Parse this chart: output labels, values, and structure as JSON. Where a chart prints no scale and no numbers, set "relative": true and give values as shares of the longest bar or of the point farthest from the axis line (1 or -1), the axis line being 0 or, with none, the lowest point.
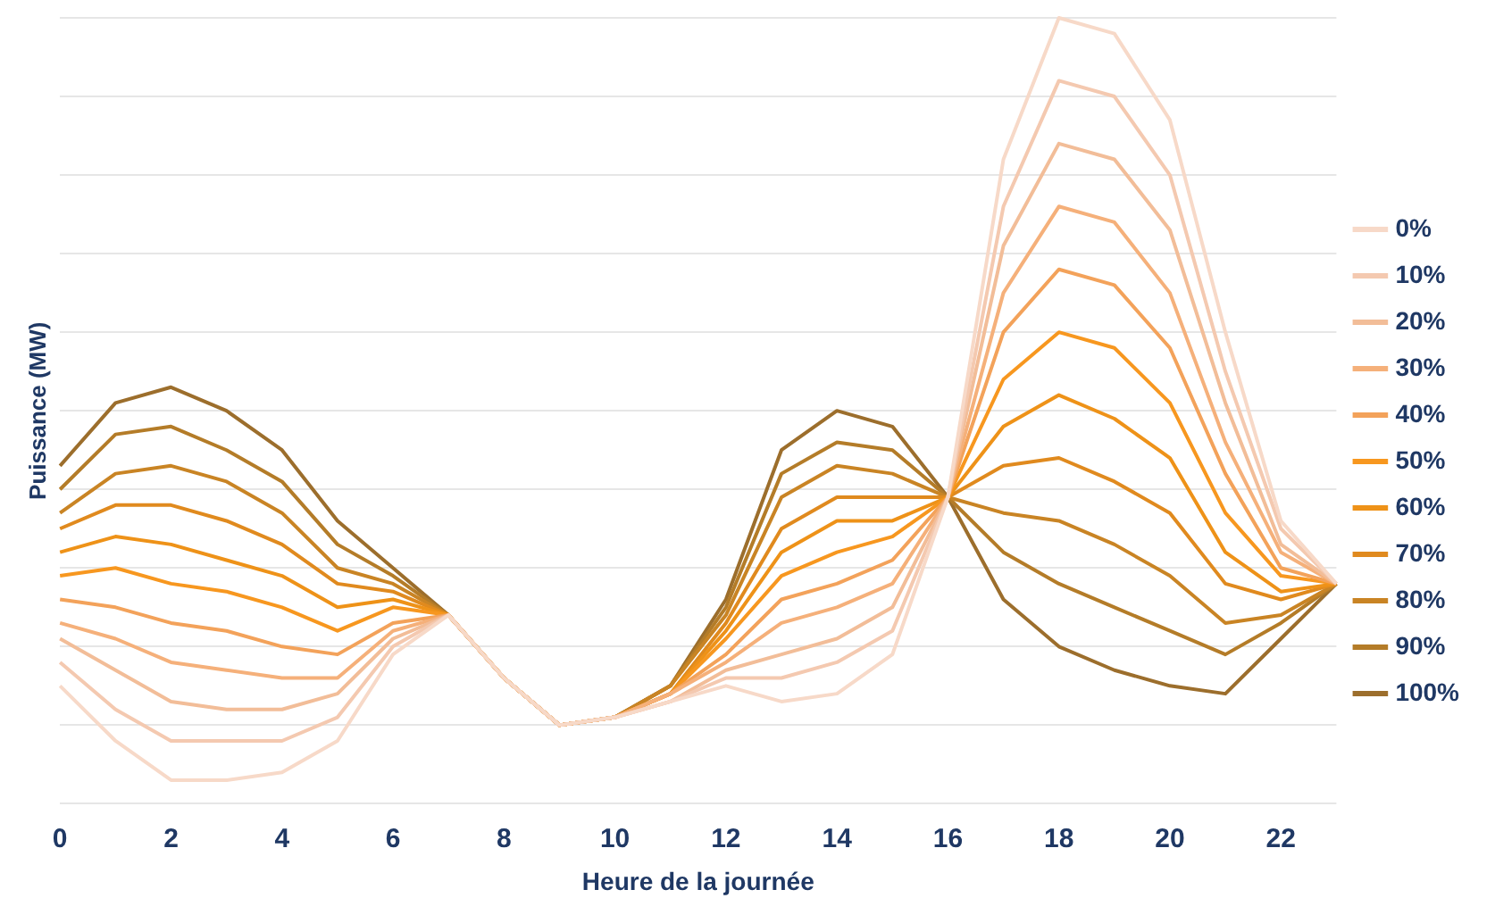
{
  "chart_data": {
    "type": "line",
    "relative": true,
    "xlabel": "Heure de la journée",
    "ylabel": "Puissance (MW)",
    "grid": "y",
    "legend": "right",
    "marker": "none",
    "line_style": "solid",
    "categories": [
      "0",
      null,
      "2",
      null,
      "4",
      null,
      "6",
      null,
      "8",
      null,
      "10",
      null,
      "12",
      null,
      "14",
      null,
      "16",
      null,
      "18",
      null,
      "20",
      null,
      "22",
      null
    ],
    "series": [
      {
        "name": "0%",
        "color": "#f7d9c8",
        "values": [
          0.15,
          0.08,
          0.03,
          0.03,
          0.04,
          0.08,
          0.19,
          0.24,
          0.16,
          0.1,
          0.11,
          0.13,
          0.15,
          0.13,
          0.14,
          0.19,
          0.39,
          0.82,
          1.0,
          0.98,
          0.87,
          0.6,
          0.36,
          0.28
        ]
      },
      {
        "name": "10%",
        "color": "#f4c9b0",
        "values": [
          0.18,
          0.12,
          0.08,
          0.08,
          0.08,
          0.11,
          0.2,
          0.24,
          0.16,
          0.1,
          0.11,
          0.13,
          0.16,
          0.16,
          0.18,
          0.22,
          0.39,
          0.76,
          0.92,
          0.9,
          0.8,
          0.55,
          0.35,
          0.28
        ]
      },
      {
        "name": "20%",
        "color": "#f2bd98",
        "values": [
          0.21,
          0.17,
          0.13,
          0.12,
          0.12,
          0.14,
          0.21,
          0.24,
          0.16,
          0.1,
          0.11,
          0.13,
          0.17,
          0.19,
          0.21,
          0.25,
          0.39,
          0.71,
          0.84,
          0.82,
          0.73,
          0.51,
          0.33,
          0.28
        ]
      },
      {
        "name": "30%",
        "color": "#f5b07a",
        "values": [
          0.23,
          0.21,
          0.18,
          0.17,
          0.16,
          0.16,
          0.22,
          0.24,
          0.16,
          0.1,
          0.11,
          0.14,
          0.18,
          0.23,
          0.25,
          0.28,
          0.39,
          0.65,
          0.76,
          0.74,
          0.65,
          0.46,
          0.32,
          0.28
        ]
      },
      {
        "name": "40%",
        "color": "#f3a25a",
        "values": [
          0.26,
          0.25,
          0.23,
          0.22,
          0.2,
          0.19,
          0.23,
          0.24,
          0.16,
          0.1,
          0.11,
          0.14,
          0.19,
          0.26,
          0.28,
          0.31,
          0.39,
          0.6,
          0.68,
          0.66,
          0.58,
          0.42,
          0.3,
          0.28
        ]
      },
      {
        "name": "50%",
        "color": "#f7971f",
        "values": [
          0.29,
          0.3,
          0.28,
          0.27,
          0.25,
          0.22,
          0.25,
          0.24,
          0.16,
          0.1,
          0.11,
          0.14,
          0.21,
          0.29,
          0.32,
          0.34,
          0.39,
          0.54,
          0.6,
          0.58,
          0.51,
          0.37,
          0.29,
          0.28
        ]
      },
      {
        "name": "60%",
        "color": "#ee9218",
        "values": [
          0.32,
          0.34,
          0.33,
          0.31,
          0.29,
          0.25,
          0.26,
          0.24,
          0.16,
          0.1,
          0.11,
          0.14,
          0.22,
          0.32,
          0.36,
          0.36,
          0.39,
          0.48,
          0.52,
          0.49,
          0.44,
          0.32,
          0.27,
          0.28
        ]
      },
      {
        "name": "70%",
        "color": "#e08a1e",
        "values": [
          0.35,
          0.38,
          0.38,
          0.36,
          0.33,
          0.28,
          0.27,
          0.24,
          0.16,
          0.1,
          0.11,
          0.14,
          0.23,
          0.35,
          0.39,
          0.39,
          0.39,
          0.43,
          0.44,
          0.41,
          0.37,
          0.28,
          0.26,
          0.28
        ]
      },
      {
        "name": "80%",
        "color": "#c98424",
        "values": [
          0.37,
          0.42,
          0.43,
          0.41,
          0.37,
          0.3,
          0.28,
          0.24,
          0.16,
          0.1,
          0.11,
          0.15,
          0.24,
          0.39,
          0.43,
          0.42,
          0.39,
          0.37,
          0.36,
          0.33,
          0.29,
          0.23,
          0.24,
          0.28
        ]
      },
      {
        "name": "90%",
        "color": "#b47c28",
        "values": [
          0.4,
          0.47,
          0.48,
          0.45,
          0.41,
          0.33,
          0.29,
          0.24,
          0.16,
          0.1,
          0.11,
          0.15,
          0.25,
          0.42,
          0.46,
          0.45,
          0.39,
          0.32,
          0.28,
          0.25,
          0.22,
          0.19,
          0.23,
          0.28
        ]
      },
      {
        "name": "100%",
        "color": "#9c6e2c",
        "values": [
          0.43,
          0.51,
          0.53,
          0.5,
          0.45,
          0.36,
          0.3,
          0.24,
          0.16,
          0.1,
          0.11,
          0.15,
          0.26,
          0.45,
          0.5,
          0.48,
          0.39,
          0.26,
          0.2,
          0.17,
          0.15,
          0.14,
          0.21,
          0.28
        ]
      }
    ]
  }
}
